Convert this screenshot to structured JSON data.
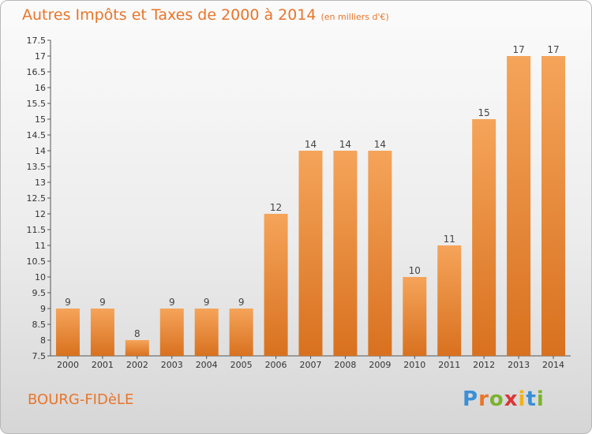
{
  "header": {
    "title": "Autres Impôts et Taxes de 2000 à 2014",
    "unit": "(en milliers d'€)"
  },
  "footer": {
    "commune": "BOURG-FIDèLE",
    "logo_letters": [
      "P",
      "r",
      "o",
      "x",
      "i",
      "t",
      "i"
    ],
    "logo_colors": [
      "#3a8fd6",
      "#e8752a",
      "#7bb32e",
      "#d93636",
      "#f0b21c",
      "#3a8fd6",
      "#7bb32e"
    ]
  },
  "colors": {
    "bar_light": "#f5a45a",
    "bar_dark": "#d8711f",
    "accent": "#e8752a"
  },
  "chart_data": {
    "type": "bar",
    "categories": [
      "2000",
      "2001",
      "2002",
      "2003",
      "2004",
      "2005",
      "2006",
      "2007",
      "2008",
      "2009",
      "2010",
      "2011",
      "2012",
      "2013",
      "2014"
    ],
    "values": [
      9,
      9,
      8,
      9,
      9,
      9,
      12,
      14,
      14,
      14,
      10,
      11,
      15,
      17,
      17
    ],
    "value_labels": [
      "9",
      "9",
      "8",
      "9",
      "9",
      "9",
      "12",
      "14",
      "14",
      "14",
      "10",
      "11",
      "15",
      "17",
      "17"
    ],
    "yticks": [
      "7.5",
      "8",
      "8.5",
      "9",
      "9.5",
      "10",
      "10.5",
      "11",
      "11.5",
      "12",
      "12.5",
      "13",
      "13.5",
      "14",
      "14.5",
      "15",
      "15.5",
      "16",
      "16.5",
      "17",
      "17.5"
    ],
    "ylim": [
      7.5,
      17.5
    ],
    "grid": false
  }
}
